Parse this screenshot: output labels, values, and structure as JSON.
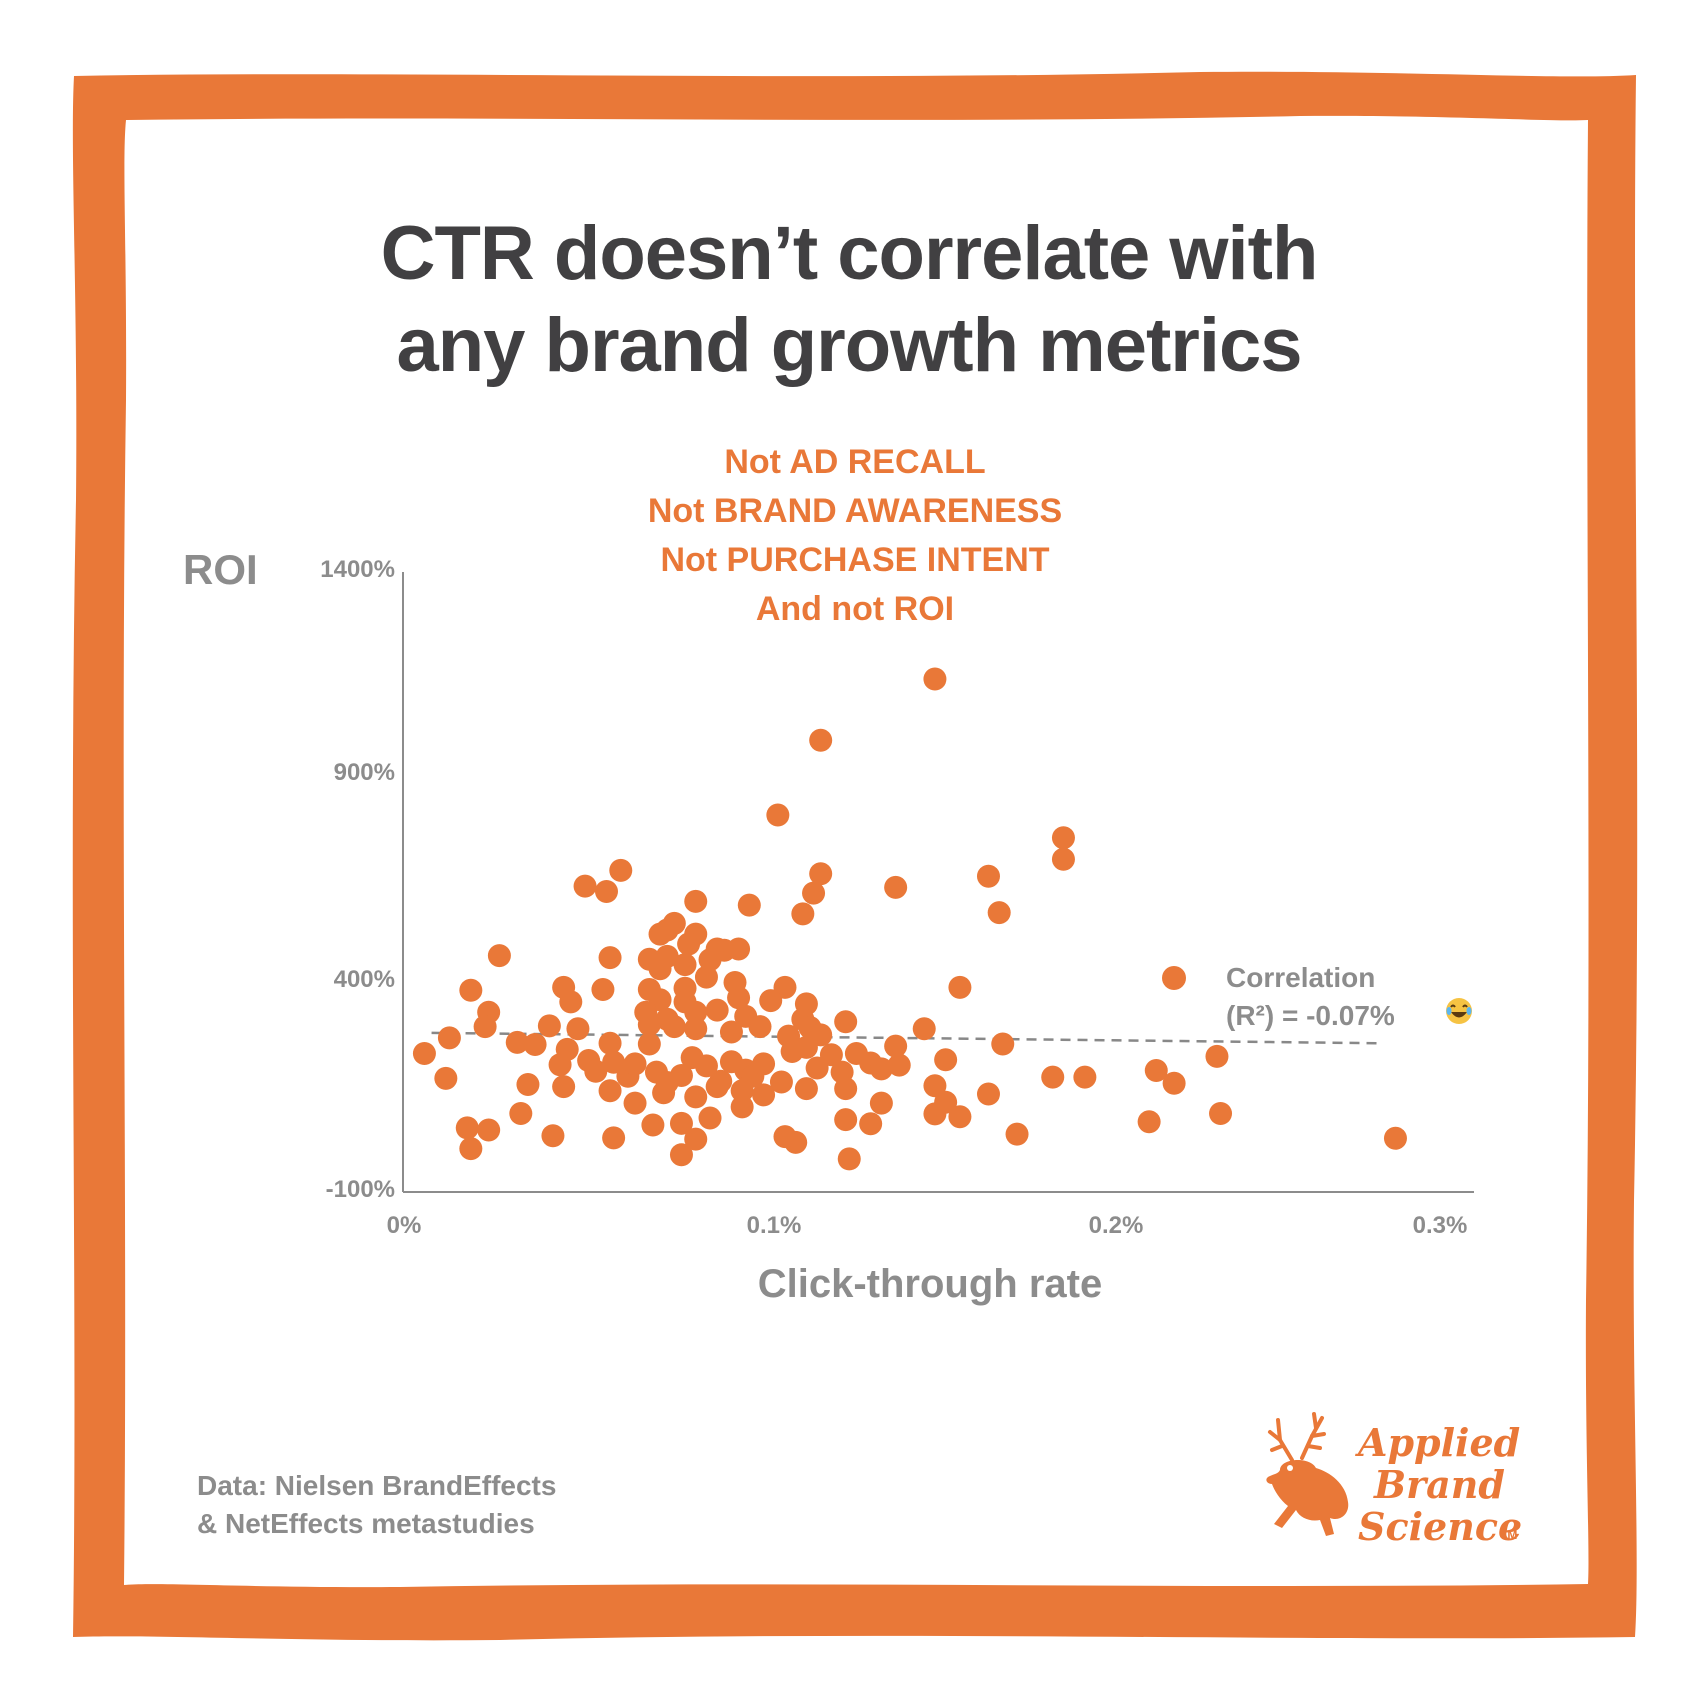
{
  "title": {
    "line1": "CTR doesn’t correlate with",
    "line2": "any brand growth metrics"
  },
  "subtitle": {
    "lines": [
      "Not AD RECALL",
      "Not BRAND AWARENESS",
      "Not PURCHASE INTENT",
      "And not ROI"
    ]
  },
  "legend": {
    "line1": "Correlation",
    "line2": "(R²) = -0.07%"
  },
  "source": {
    "line1": "Data: Nielsen BrandEffects",
    "line2": "& NetEffects metastudies"
  },
  "logo": {
    "line1": "Applied",
    "line2": "Brand",
    "line3": "Science",
    "tm": "TM"
  },
  "colors": {
    "accent": "#e97838",
    "title": "#414042",
    "axis_text": "#8c8c8c",
    "trend": "#888888"
  },
  "chart_data": {
    "type": "scatter",
    "title": "CTR doesn’t correlate with any brand growth metrics",
    "xlabel": "Click-through rate",
    "ylabel": "ROI",
    "xlim": [
      0,
      0.3
    ],
    "ylim": [
      -100,
      1400
    ],
    "x_ticks": [
      0,
      0.1,
      0.2,
      0.3
    ],
    "x_tick_labels": [
      "0%",
      "0.1%",
      "0.2%",
      "0.3%"
    ],
    "y_ticks": [
      -100,
      400,
      900,
      1400
    ],
    "y_tick_labels": [
      "-100%",
      "400%",
      "900%",
      "1400%"
    ],
    "grid": false,
    "trendline": {
      "style": "dashed",
      "x": [
        0.008,
        0.273
      ],
      "y": [
        285,
        260
      ]
    },
    "points": [
      [
        0.149,
        1141
      ],
      [
        0.117,
        993
      ],
      [
        0.105,
        812
      ],
      [
        0.185,
        757
      ],
      [
        0.185,
        705
      ],
      [
        0.061,
        678
      ],
      [
        0.051,
        640
      ],
      [
        0.057,
        627
      ],
      [
        0.117,
        670
      ],
      [
        0.115,
        623
      ],
      [
        0.138,
        637
      ],
      [
        0.164,
        664
      ],
      [
        0.167,
        576
      ],
      [
        0.097,
        594
      ],
      [
        0.082,
        603
      ],
      [
        0.112,
        573
      ],
      [
        0.076,
        550
      ],
      [
        0.074,
        534
      ],
      [
        0.072,
        524
      ],
      [
        0.082,
        524
      ],
      [
        0.08,
        500
      ],
      [
        0.088,
        488
      ],
      [
        0.09,
        485
      ],
      [
        0.094,
        488
      ],
      [
        0.086,
        462
      ],
      [
        0.069,
        463
      ],
      [
        0.074,
        470
      ],
      [
        0.079,
        450
      ],
      [
        0.072,
        440
      ],
      [
        0.058,
        467
      ],
      [
        0.027,
        472
      ],
      [
        0.019,
        388
      ],
      [
        0.045,
        395
      ],
      [
        0.047,
        360
      ],
      [
        0.056,
        390
      ],
      [
        0.069,
        390
      ],
      [
        0.079,
        393
      ],
      [
        0.085,
        420
      ],
      [
        0.093,
        407
      ],
      [
        0.107,
        395
      ],
      [
        0.094,
        370
      ],
      [
        0.103,
        363
      ],
      [
        0.113,
        355
      ],
      [
        0.072,
        365
      ],
      [
        0.079,
        360
      ],
      [
        0.068,
        335
      ],
      [
        0.074,
        318
      ],
      [
        0.082,
        335
      ],
      [
        0.088,
        340
      ],
      [
        0.096,
        325
      ],
      [
        0.1,
        300
      ],
      [
        0.112,
        318
      ],
      [
        0.124,
        312
      ],
      [
        0.146,
        295
      ],
      [
        0.156,
        395
      ],
      [
        0.024,
        335
      ],
      [
        0.023,
        300
      ],
      [
        0.013,
        273
      ],
      [
        0.032,
        262
      ],
      [
        0.037,
        257
      ],
      [
        0.041,
        302
      ],
      [
        0.049,
        295
      ],
      [
        0.058,
        260
      ],
      [
        0.069,
        258
      ],
      [
        0.069,
        305
      ],
      [
        0.076,
        300
      ],
      [
        0.082,
        295
      ],
      [
        0.092,
        287
      ],
      [
        0.108,
        277
      ],
      [
        0.114,
        298
      ],
      [
        0.117,
        280
      ],
      [
        0.006,
        235
      ],
      [
        0.012,
        175
      ],
      [
        0.035,
        160
      ],
      [
        0.044,
        208
      ],
      [
        0.046,
        245
      ],
      [
        0.052,
        218
      ],
      [
        0.054,
        192
      ],
      [
        0.059,
        214
      ],
      [
        0.063,
        180
      ],
      [
        0.065,
        210
      ],
      [
        0.071,
        190
      ],
      [
        0.074,
        165
      ],
      [
        0.078,
        182
      ],
      [
        0.081,
        225
      ],
      [
        0.085,
        205
      ],
      [
        0.089,
        168
      ],
      [
        0.092,
        215
      ],
      [
        0.096,
        195
      ],
      [
        0.098,
        180
      ],
      [
        0.101,
        210
      ],
      [
        0.106,
        166
      ],
      [
        0.109,
        240
      ],
      [
        0.113,
        250
      ],
      [
        0.116,
        200
      ],
      [
        0.12,
        232
      ],
      [
        0.123,
        190
      ],
      [
        0.127,
        235
      ],
      [
        0.131,
        212
      ],
      [
        0.134,
        198
      ],
      [
        0.138,
        253
      ],
      [
        0.139,
        207
      ],
      [
        0.152,
        220
      ],
      [
        0.168,
        258
      ],
      [
        0.182,
        178
      ],
      [
        0.191,
        178
      ],
      [
        0.211,
        194
      ],
      [
        0.216,
        163
      ],
      [
        0.228,
        228
      ],
      [
        0.045,
        155
      ],
      [
        0.058,
        145
      ],
      [
        0.065,
        115
      ],
      [
        0.073,
        140
      ],
      [
        0.082,
        130
      ],
      [
        0.088,
        155
      ],
      [
        0.095,
        145
      ],
      [
        0.101,
        135
      ],
      [
        0.113,
        150
      ],
      [
        0.124,
        150
      ],
      [
        0.134,
        115
      ],
      [
        0.149,
        157
      ],
      [
        0.152,
        117
      ],
      [
        0.164,
        137
      ],
      [
        0.033,
        90
      ],
      [
        0.018,
        55
      ],
      [
        0.024,
        50
      ],
      [
        0.042,
        36
      ],
      [
        0.059,
        31
      ],
      [
        0.07,
        62
      ],
      [
        0.078,
        66
      ],
      [
        0.086,
        79
      ],
      [
        0.095,
        106
      ],
      [
        0.11,
        20
      ],
      [
        0.124,
        75
      ],
      [
        0.131,
        65
      ],
      [
        0.149,
        89
      ],
      [
        0.156,
        82
      ],
      [
        0.172,
        40
      ],
      [
        0.209,
        70
      ],
      [
        0.229,
        90
      ],
      [
        0.278,
        30
      ],
      [
        0.019,
        5
      ],
      [
        0.078,
        -10
      ],
      [
        0.082,
        28
      ],
      [
        0.107,
        34
      ],
      [
        0.125,
        -20
      ]
    ]
  }
}
